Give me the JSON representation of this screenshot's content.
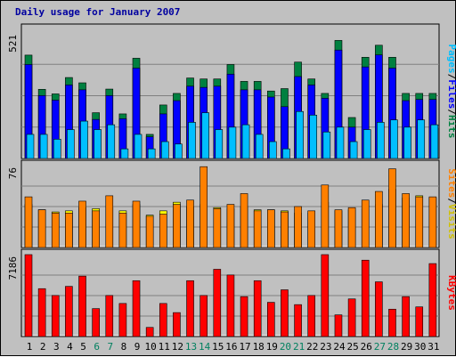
{
  "chart_data": {
    "type": "bar",
    "title": "Daily usage for January 2007",
    "categories": [
      "1",
      "2",
      "3",
      "4",
      "5",
      "6",
      "7",
      "8",
      "9",
      "10",
      "11",
      "12",
      "13",
      "14",
      "15",
      "16",
      "17",
      "18",
      "19",
      "20",
      "21",
      "22",
      "23",
      "24",
      "25",
      "26",
      "27",
      "28",
      "29",
      "30",
      "31"
    ],
    "weekend_days": [
      "6",
      "7",
      "13",
      "14",
      "20",
      "21",
      "27",
      "28"
    ],
    "panels": [
      {
        "name": "pages-files-hits",
        "ymax_label": "521",
        "ymax": 521,
        "legend": [
          "Pages",
          "/",
          "Files",
          "/",
          "Hits"
        ],
        "series": [
          {
            "name": "Hits",
            "color": "#008040",
            "values": [
              429,
              287,
              268,
              336,
              314,
              190,
              288,
              185,
              416,
              100,
              222,
              270,
              334,
              330,
              330,
              390,
              320,
              320,
              280,
              290,
              400,
              330,
              270,
              490,
              170,
              420,
              470,
              420,
              270,
              270,
              270
            ]
          },
          {
            "name": "Files",
            "color": "#0000ff",
            "values": [
              390,
              261,
              242,
              305,
              285,
              162,
              261,
              165,
              375,
              90,
              185,
              240,
              300,
              295,
              300,
              350,
              285,
              285,
              255,
              215,
              340,
              305,
              250,
              450,
              130,
              380,
              430,
              375,
              240,
              245,
              245
            ]
          },
          {
            "name": "Pages",
            "color": "#00bfff",
            "values": [
              100,
              100,
              80,
              120,
              155,
              120,
              140,
              40,
              100,
              40,
              70,
              60,
              150,
              190,
              120,
              130,
              140,
              100,
              70,
              40,
              195,
              180,
              110,
              130,
              70,
              120,
              150,
              160,
              130,
              160,
              140
            ]
          }
        ]
      },
      {
        "name": "sites-visits",
        "ymax_label": "76",
        "ymax": 76,
        "legend": [
          "Sites",
          "/",
          "Visits"
        ],
        "series": [
          {
            "name": "Visits",
            "color": "#ffff00",
            "values": [
              40,
              35,
              33,
              34,
              37,
              36,
              37,
              34,
              40,
              30,
              34,
              42,
              38,
              40,
              37,
              36,
              38,
              35,
              35,
              34,
              32,
              32,
              42,
              34,
              35,
              36,
              40,
              54,
              46,
              48,
              46
            ]
          },
          {
            "name": "Sites",
            "color": "#ff8000",
            "values": [
              47,
              35,
              32,
              32,
              43,
              34,
              48,
              32,
              43,
              29,
              31,
              40,
              44,
              75,
              36,
              40,
              50,
              34,
              35,
              33,
              38,
              34,
              58,
              35,
              37,
              44,
              52,
              73,
              50,
              47,
              47
            ]
          }
        ]
      },
      {
        "name": "kbytes",
        "ymax_label": "7186",
        "ymax": 7186,
        "legend": [
          "KBytes"
        ],
        "series": [
          {
            "name": "KBytes",
            "color": "#ff0000",
            "values": [
              7186,
              4200,
              3600,
              4400,
              5300,
              2450,
              3600,
              2900,
              4900,
              800,
              2900,
              2100,
              4900,
              3600,
              5900,
              5400,
              3500,
              4900,
              3000,
              4100,
              2800,
              3600,
              7186,
              1900,
              3300,
              6700,
              4800,
              2400,
              3500,
              2600,
              6400
            ]
          }
        ]
      }
    ],
    "colors": {
      "title": "#0000a0",
      "weekend": "#00805f",
      "weekday": "#000000",
      "background": "#c0c0c0",
      "plot": "#c0c0c0"
    }
  }
}
